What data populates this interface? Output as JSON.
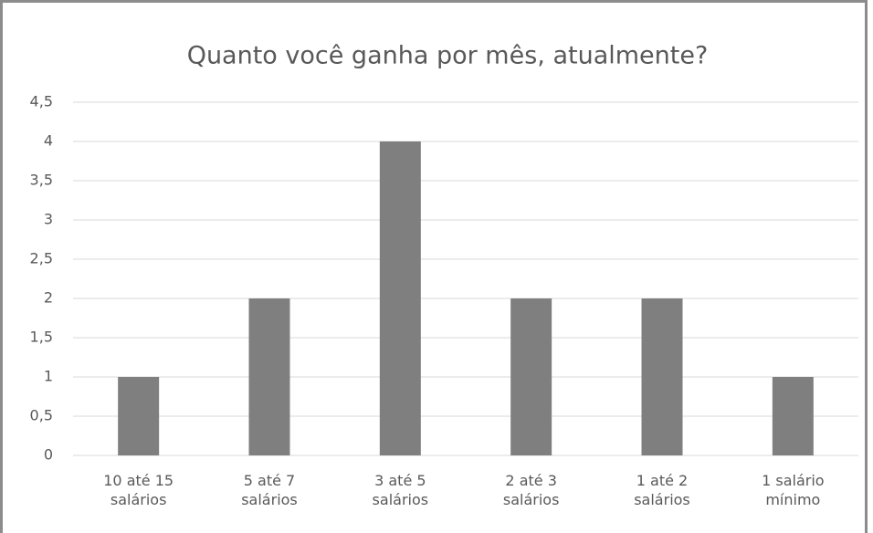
{
  "chart_data": {
    "type": "bar",
    "title": "Quanto você ganha por mês, atualmente?",
    "categories": [
      "10 até 15 salários",
      "5 até 7 salários",
      "3 até 5 salários",
      "2 até 3 salários",
      "1 até 2 salários",
      "1 salário mínimo"
    ],
    "values": [
      1,
      2,
      4,
      2,
      2,
      1
    ],
    "color": "#7f7f7f",
    "ylim": [
      0,
      4.5
    ],
    "yticks": [
      0,
      {
        "value": 0.5,
        "label": "0,5"
      },
      1,
      {
        "value": 1.5,
        "label": "1,5"
      },
      2,
      {
        "value": 2.5,
        "label": "2,5"
      },
      3,
      {
        "value": 3.5,
        "label": "3,5"
      },
      4,
      {
        "value": 4.5,
        "label": "4,5"
      }
    ],
    "grid": true
  }
}
